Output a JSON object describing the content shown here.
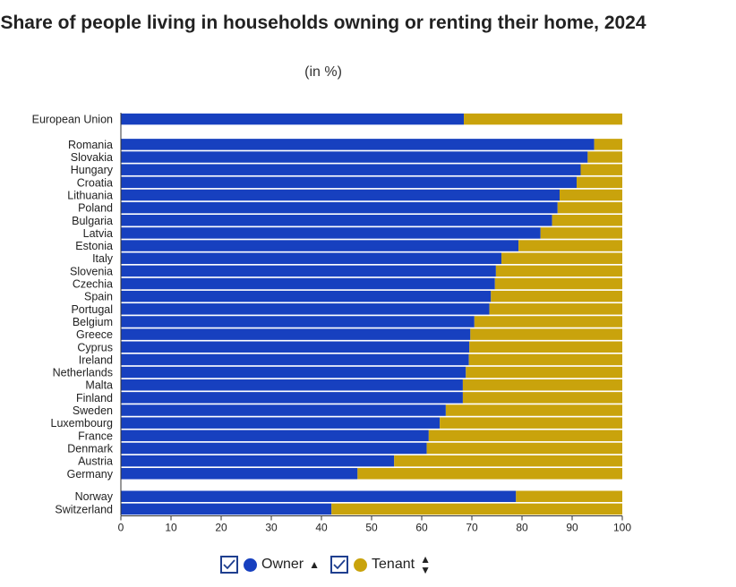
{
  "title": "Share of people living in households owning or renting their home, 2024",
  "subtitle": "(in %)",
  "colors": {
    "owner": "#1740bf",
    "tenant": "#c9a30c"
  },
  "legend": {
    "owner_label": "Owner",
    "tenant_label": "Tenant"
  },
  "chart_data": {
    "type": "bar",
    "orientation": "horizontal",
    "stacked": true,
    "categories": [
      "European Union",
      "Romania",
      "Slovakia",
      "Hungary",
      "Croatia",
      "Lithuania",
      "Poland",
      "Bulgaria",
      "Latvia",
      "Estonia",
      "Italy",
      "Slovenia",
      "Czechia",
      "Spain",
      "Portugal",
      "Belgium",
      "Greece",
      "Cyprus",
      "Ireland",
      "Netherlands",
      "Malta",
      "Finland",
      "Sweden",
      "Luxembourg",
      "France",
      "Denmark",
      "Austria",
      "Germany",
      "Norway",
      "Switzerland"
    ],
    "series": [
      {
        "name": "Owner",
        "values": [
          68.4,
          94.4,
          93.1,
          91.7,
          90.9,
          87.5,
          87.1,
          86.0,
          83.7,
          79.3,
          75.9,
          74.8,
          74.6,
          73.8,
          73.5,
          70.5,
          69.7,
          69.5,
          69.4,
          68.8,
          68.2,
          68.2,
          64.8,
          63.6,
          61.4,
          61.0,
          54.5,
          47.2,
          78.8,
          42.0
        ]
      },
      {
        "name": "Tenant",
        "values": [
          31.6,
          5.6,
          6.9,
          8.3,
          9.1,
          12.5,
          12.9,
          14.0,
          16.3,
          20.7,
          24.1,
          25.2,
          25.4,
          26.2,
          26.5,
          29.5,
          30.3,
          30.5,
          30.6,
          31.2,
          31.8,
          31.8,
          35.2,
          36.4,
          38.6,
          39.0,
          45.5,
          52.8,
          21.2,
          58.0
        ]
      }
    ],
    "xlim": [
      0,
      100
    ],
    "xticks": [
      "0",
      "10",
      "20",
      "30",
      "40",
      "50",
      "60",
      "70",
      "80",
      "90",
      "100"
    ],
    "groups": [
      1,
      27,
      2
    ]
  }
}
